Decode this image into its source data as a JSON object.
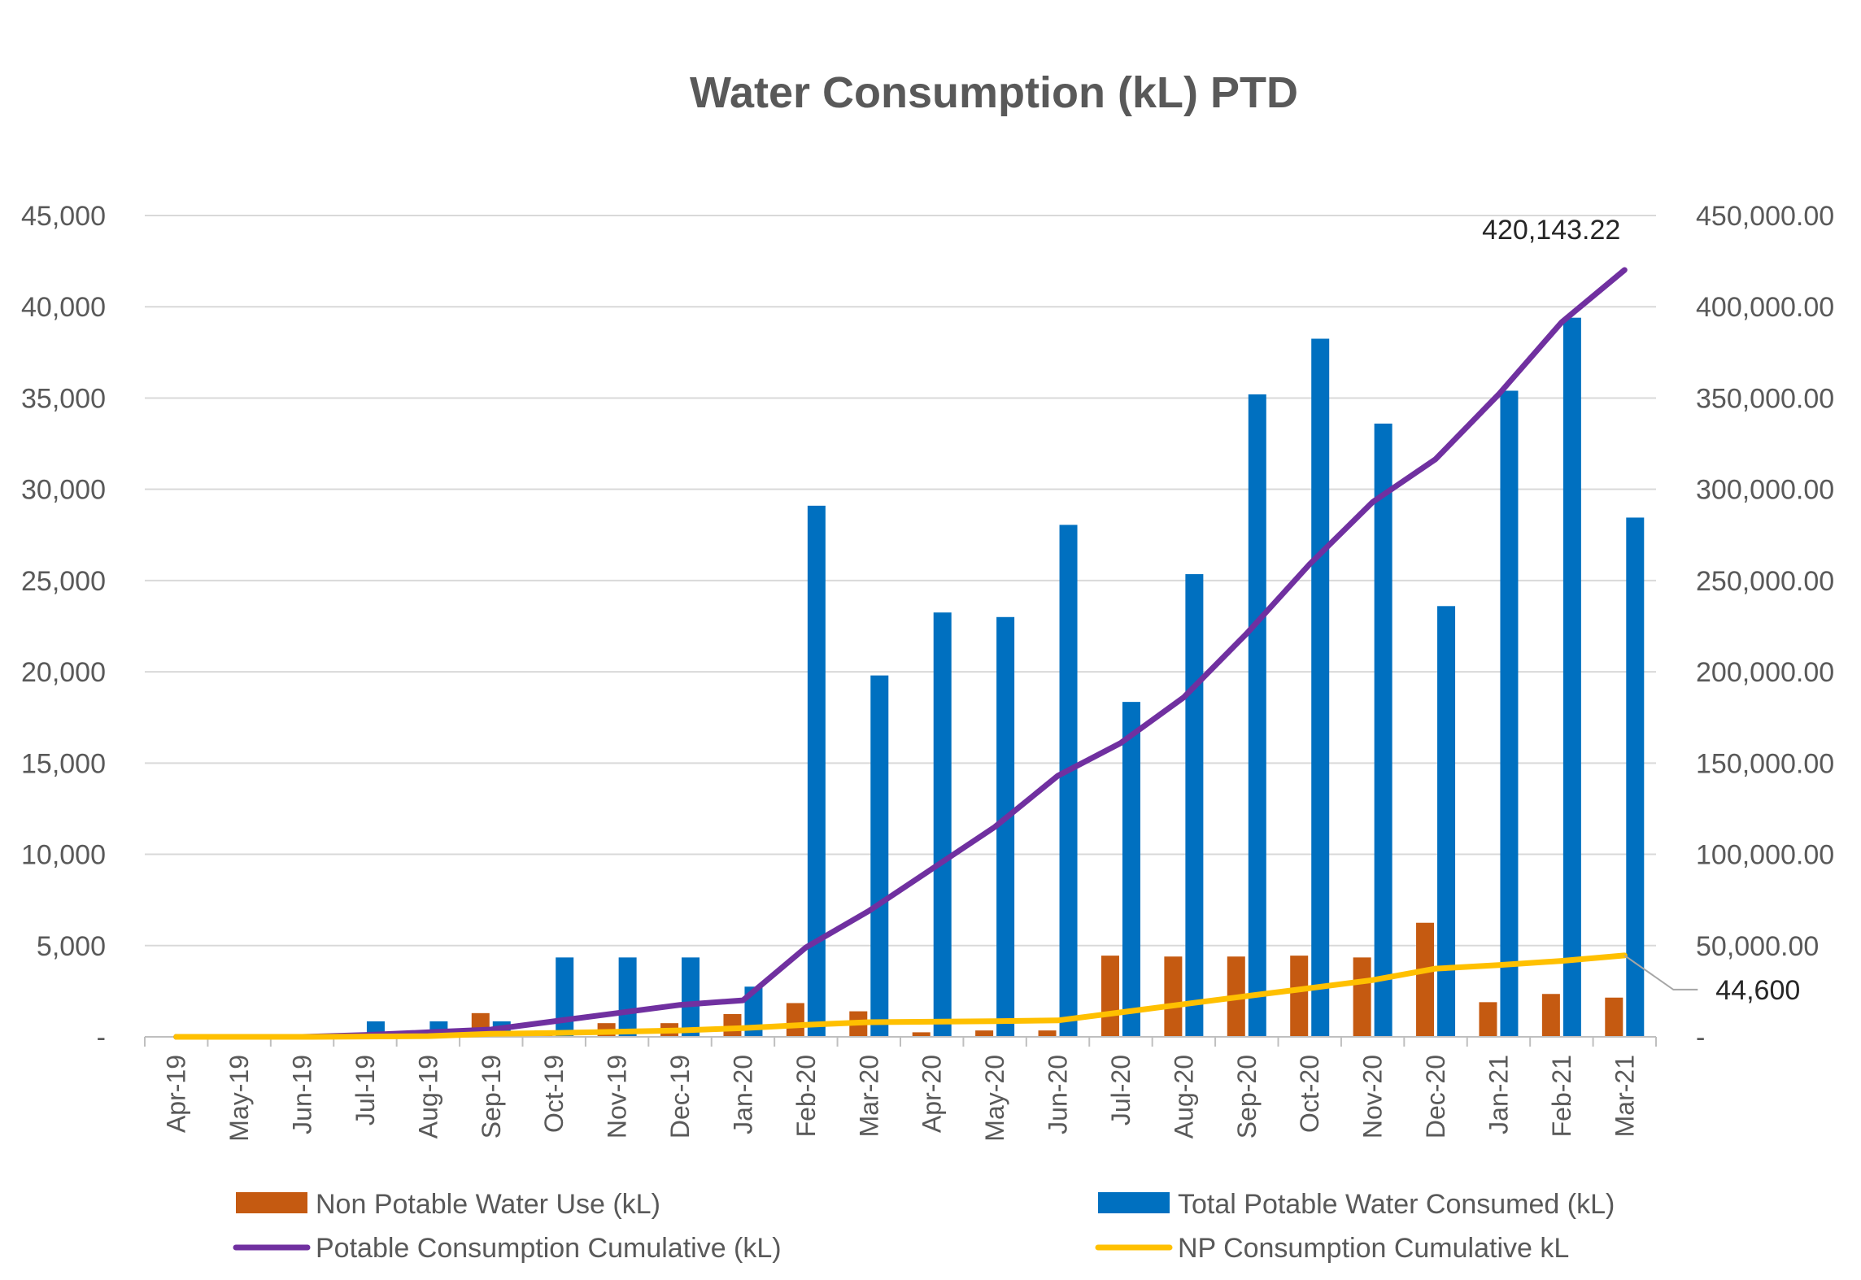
{
  "chart_data": {
    "type": "bar",
    "title": "Water Consumption (kL) PTD",
    "categories": [
      "Apr-19",
      "May-19",
      "Jun-19",
      "Jul-19",
      "Aug-19",
      "Sep-19",
      "Oct-19",
      "Nov-19",
      "Dec-19",
      "Jan-20",
      "Feb-20",
      "Mar-20",
      "Apr-20",
      "May-20",
      "Jun-20",
      "Jul-20",
      "Aug-20",
      "Sep-20",
      "Oct-20",
      "Nov-20",
      "Dec-20",
      "Jan-21",
      "Feb-21",
      "Mar-21"
    ],
    "left_axis": {
      "ylim": [
        0,
        45000
      ],
      "ticks": [
        "-",
        "5,000",
        "10,000",
        "15,000",
        "20,000",
        "25,000",
        "30,000",
        "35,000",
        "40,000",
        "45,000"
      ]
    },
    "right_axis": {
      "ylim": [
        0,
        450000
      ],
      "ticks": [
        "-",
        "50,000.00",
        "100,000.00",
        "150,000.00",
        "200,000.00",
        "250,000.00",
        "300,000.00",
        "350,000.00",
        "400,000.00",
        "450,000.00"
      ]
    },
    "grid": true,
    "legend_position": "bottom",
    "series": [
      {
        "name": "Non Potable Water Use (kL)",
        "type": "bar",
        "axis": "left",
        "color": "#C55A11",
        "values": [
          0,
          0,
          0,
          150,
          200,
          1300,
          350,
          750,
          750,
          1250,
          1850,
          1400,
          250,
          350,
          350,
          4450,
          4400,
          4400,
          4450,
          4350,
          6250,
          1900,
          2350,
          2150
        ]
      },
      {
        "name": "Total Potable Water Consumed (kL)",
        "type": "bar",
        "axis": "left",
        "color": "#0070C0",
        "values": [
          0,
          0,
          0,
          850,
          850,
          850,
          4350,
          4350,
          4350,
          2750,
          29100,
          19800,
          23250,
          23000,
          28050,
          18350,
          25350,
          35200,
          38250,
          33600,
          23600,
          35400,
          39400,
          28450
        ]
      },
      {
        "name": "Potable Consumption Cumulative (kL)",
        "type": "line",
        "axis": "right",
        "color": "#7030A0",
        "values": [
          0,
          0,
          0,
          1000,
          2500,
          4000,
          8500,
          13000,
          17500,
          20000,
          49000,
          69000,
          92000,
          115000,
          143000,
          161000,
          186000,
          221000,
          259000,
          293000,
          316500,
          352000,
          391500,
          420143.22
        ]
      },
      {
        "name": "NP Consumption Cumulative kL",
        "type": "line",
        "axis": "right",
        "color": "#FFC000",
        "values": [
          0,
          0,
          0,
          200,
          400,
          1700,
          2100,
          2800,
          3500,
          4800,
          6600,
          8000,
          8300,
          8600,
          9000,
          13400,
          17900,
          22300,
          26700,
          31100,
          37400,
          39300,
          41600,
          44600
        ]
      }
    ],
    "annotations": [
      {
        "series": "Potable Consumption Cumulative (kL)",
        "category": "Mar-21",
        "text": "420,143.22"
      },
      {
        "series": "NP Consumption Cumulative kL",
        "category": "Mar-21",
        "text": "44,600"
      }
    ]
  }
}
